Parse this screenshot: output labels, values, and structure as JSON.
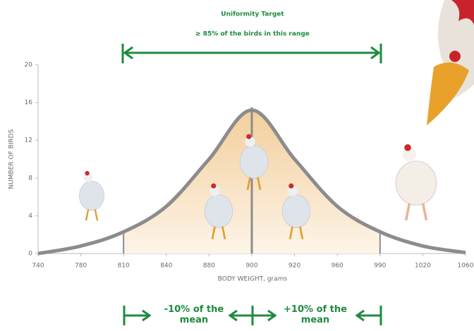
{
  "chart_data": {
    "type": "line",
    "title": "Uniformity Target",
    "subtitle": "≥ 85% of the birds in this range",
    "x_label": "BODY WEIGHT, grams",
    "y_label": "NUMBER OF BIRDS",
    "categories": [
      "740",
      "780",
      "810",
      "840",
      "880",
      "900",
      "920",
      "960",
      "990",
      "1020",
      "1060"
    ],
    "values": [
      0,
      0.8,
      2.3,
      5,
      10,
      15.2,
      10,
      5,
      2.3,
      0.8,
      0.1
    ],
    "color": "#8c8c8c",
    "ylim": [
      0,
      20
    ],
    "yticks": [
      0,
      4,
      8,
      12,
      16,
      20
    ],
    "annotations": [
      "-10% of the mean",
      "+10% of the mean"
    ]
  }
}
